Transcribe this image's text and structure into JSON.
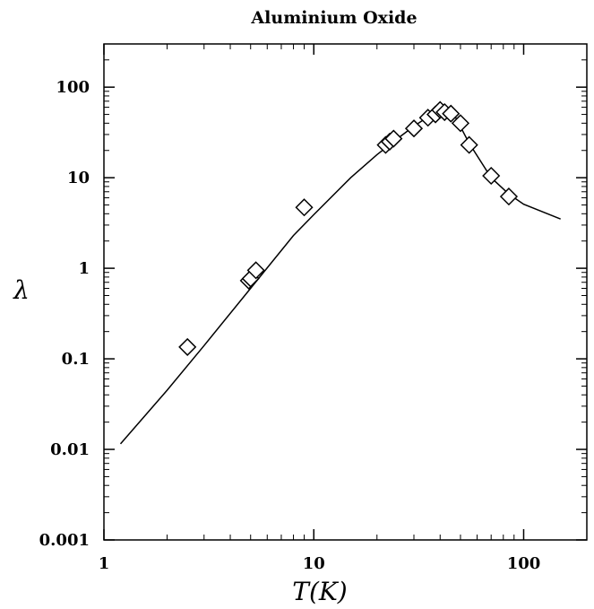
{
  "chart_data": {
    "type": "scatter",
    "title": "Aluminium Oxide",
    "xlabel": "T(K)",
    "ylabel": "λ",
    "xscale": "log",
    "yscale": "log",
    "xlim": [
      1,
      200
    ],
    "ylim": [
      0.001,
      300
    ],
    "grid": false,
    "x_ticks": [
      {
        "value": 1,
        "label": "1"
      },
      {
        "value": 10,
        "label": "10"
      },
      {
        "value": 100,
        "label": "100"
      }
    ],
    "y_ticks": [
      {
        "value": 0.001,
        "label": "0.001"
      },
      {
        "value": 0.01,
        "label": "0.01"
      },
      {
        "value": 0.1,
        "label": "0.1"
      },
      {
        "value": 1,
        "label": "1"
      },
      {
        "value": 10,
        "label": "10"
      },
      {
        "value": 100,
        "label": "100"
      }
    ],
    "series": [
      {
        "type": "line",
        "color": "#000000",
        "points": [
          [
            1.2,
            0.0115
          ],
          [
            2,
            0.045
          ],
          [
            3,
            0.14
          ],
          [
            5,
            0.6
          ],
          [
            8,
            2.3
          ],
          [
            10,
            3.9
          ],
          [
            15,
            10
          ],
          [
            20,
            18
          ],
          [
            25,
            27
          ],
          [
            30,
            37
          ],
          [
            35,
            47
          ],
          [
            40,
            57
          ],
          [
            43,
            58
          ],
          [
            47,
            48
          ],
          [
            55,
            24
          ],
          [
            70,
            10
          ],
          [
            85,
            6.6
          ],
          [
            100,
            5.1
          ],
          [
            150,
            3.5
          ]
        ]
      },
      {
        "type": "scatter",
        "marker": "diamond",
        "color": "#000000",
        "points": [
          [
            2.5,
            0.135
          ],
          [
            4.9,
            0.73
          ],
          [
            5.0,
            0.77
          ],
          [
            5.3,
            0.95
          ],
          [
            9.0,
            4.7
          ],
          [
            22,
            23
          ],
          [
            23,
            25
          ],
          [
            24,
            27
          ],
          [
            30,
            35
          ],
          [
            35,
            46
          ],
          [
            38,
            50
          ],
          [
            40,
            56
          ],
          [
            42,
            53
          ],
          [
            45,
            51
          ],
          [
            50,
            40
          ],
          [
            55,
            23
          ],
          [
            70,
            10.5
          ],
          [
            85,
            6.2
          ]
        ]
      }
    ]
  }
}
